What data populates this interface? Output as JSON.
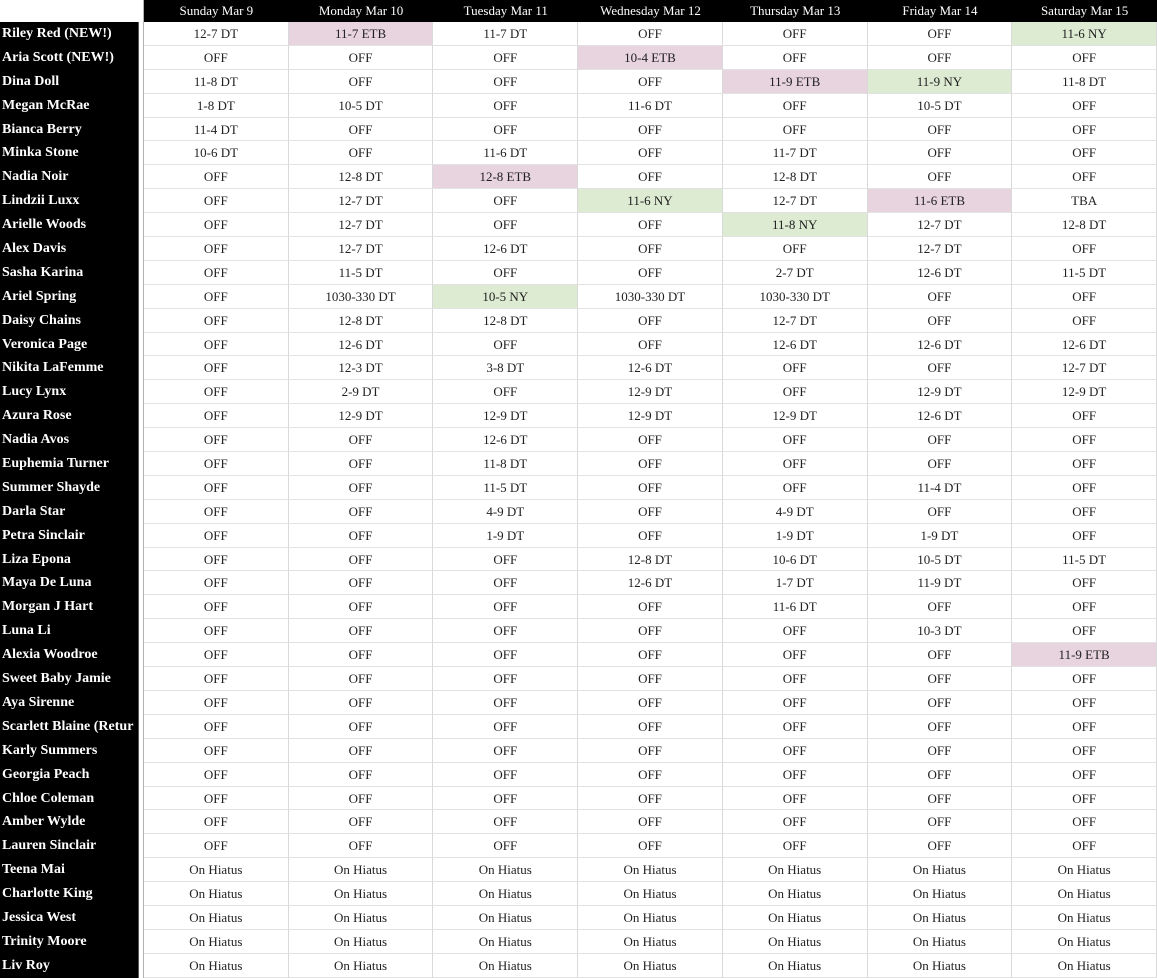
{
  "table": {
    "corner_label": "",
    "columns": [
      "Sunday Mar 9",
      "Monday Mar 10",
      "Tuesday Mar 11",
      "Wednesday Mar 12",
      "Thursday Mar 13",
      "Friday Mar 14",
      "Saturday Mar 15"
    ],
    "rows": [
      {
        "name": "Riley Red (NEW!)",
        "cells": [
          "12-7 DT",
          {
            "v": "11-7 ETB",
            "c": "pink"
          },
          "11-7 DT",
          "OFF",
          "OFF",
          "OFF",
          {
            "v": "11-6 NY",
            "c": "green"
          }
        ]
      },
      {
        "name": "Aria Scott (NEW!)",
        "cells": [
          "OFF",
          "OFF",
          "OFF",
          {
            "v": "10-4 ETB",
            "c": "pink"
          },
          "OFF",
          "OFF",
          "OFF"
        ]
      },
      {
        "name": "Dina Doll",
        "cells": [
          "11-8 DT",
          "OFF",
          "OFF",
          "OFF",
          {
            "v": "11-9 ETB",
            "c": "pink"
          },
          {
            "v": "11-9 NY",
            "c": "green"
          },
          "11-8 DT"
        ]
      },
      {
        "name": "Megan McRae",
        "cells": [
          "1-8 DT",
          "10-5 DT",
          "OFF",
          "11-6 DT",
          "OFF",
          "10-5 DT",
          "OFF"
        ]
      },
      {
        "name": "Bianca Berry",
        "cells": [
          "11-4 DT",
          "OFF",
          "OFF",
          "OFF",
          "OFF",
          "OFF",
          "OFF"
        ]
      },
      {
        "name": "Minka Stone",
        "cells": [
          "10-6 DT",
          "OFF",
          "11-6 DT",
          "OFF",
          "11-7 DT",
          "OFF",
          "OFF"
        ]
      },
      {
        "name": "Nadia Noir",
        "cells": [
          "OFF",
          "12-8 DT",
          {
            "v": "12-8 ETB",
            "c": "pink"
          },
          "OFF",
          "12-8 DT",
          "OFF",
          "OFF"
        ]
      },
      {
        "name": "Lindzii Luxx",
        "cells": [
          "OFF",
          "12-7 DT",
          "OFF",
          {
            "v": "11-6 NY",
            "c": "green"
          },
          "12-7 DT",
          {
            "v": "11-6 ETB",
            "c": "pink"
          },
          "TBA"
        ]
      },
      {
        "name": "Arielle Woods",
        "cells": [
          "OFF",
          "12-7 DT",
          "OFF",
          "OFF",
          {
            "v": "11-8 NY",
            "c": "green"
          },
          "12-7 DT",
          "12-8 DT"
        ]
      },
      {
        "name": "Alex Davis",
        "cells": [
          "OFF",
          "12-7 DT",
          "12-6 DT",
          "OFF",
          "OFF",
          "12-7 DT",
          "OFF"
        ]
      },
      {
        "name": "Sasha Karina",
        "cells": [
          "OFF",
          "11-5 DT",
          "OFF",
          "OFF",
          "2-7 DT",
          "12-6 DT",
          "11-5 DT"
        ]
      },
      {
        "name": "Ariel Spring",
        "cells": [
          "OFF",
          "1030-330 DT",
          {
            "v": "10-5 NY",
            "c": "green"
          },
          "1030-330 DT",
          "1030-330 DT",
          "OFF",
          "OFF"
        ]
      },
      {
        "name": "Daisy Chains",
        "cells": [
          "OFF",
          "12-8 DT",
          "12-8 DT",
          "OFF",
          "12-7 DT",
          "OFF",
          "OFF"
        ]
      },
      {
        "name": "Veronica Page",
        "cells": [
          "OFF",
          "12-6 DT",
          "OFF",
          "OFF",
          "12-6 DT",
          "12-6 DT",
          "12-6 DT"
        ]
      },
      {
        "name": "Nikita LaFemme",
        "cells": [
          "OFF",
          "12-3 DT",
          "3-8 DT",
          "12-6 DT",
          "OFF",
          "OFF",
          "12-7 DT"
        ]
      },
      {
        "name": "Lucy Lynx",
        "cells": [
          "OFF",
          "2-9 DT",
          "OFF",
          "12-9 DT",
          "OFF",
          "12-9 DT",
          "12-9 DT"
        ]
      },
      {
        "name": "Azura Rose",
        "cells": [
          "OFF",
          "12-9 DT",
          "12-9 DT",
          "12-9 DT",
          "12-9 DT",
          "12-6 DT",
          "OFF"
        ]
      },
      {
        "name": "Nadia Avos",
        "cells": [
          "OFF",
          "OFF",
          "12-6 DT",
          "OFF",
          "OFF",
          "OFF",
          "OFF"
        ]
      },
      {
        "name": "Euphemia Turner",
        "cells": [
          "OFF",
          "OFF",
          "11-8 DT",
          "OFF",
          "OFF",
          "OFF",
          "OFF"
        ]
      },
      {
        "name": "Summer Shayde",
        "cells": [
          "OFF",
          "OFF",
          "11-5 DT",
          "OFF",
          "OFF",
          "11-4 DT",
          "OFF"
        ]
      },
      {
        "name": "Darla Star",
        "cells": [
          "OFF",
          "OFF",
          "4-9 DT",
          "OFF",
          "4-9 DT",
          "OFF",
          "OFF"
        ]
      },
      {
        "name": "Petra Sinclair",
        "cells": [
          "OFF",
          "OFF",
          "1-9 DT",
          "OFF",
          "1-9 DT",
          "1-9 DT",
          "OFF"
        ]
      },
      {
        "name": "Liza Epona",
        "cells": [
          "OFF",
          "OFF",
          "OFF",
          "12-8 DT",
          "10-6 DT",
          "10-5 DT",
          "11-5 DT"
        ]
      },
      {
        "name": "Maya De Luna",
        "cells": [
          "OFF",
          "OFF",
          "OFF",
          "12-6 DT",
          "1-7 DT",
          "11-9 DT",
          "OFF"
        ]
      },
      {
        "name": "Morgan J Hart",
        "cells": [
          "OFF",
          "OFF",
          "OFF",
          "OFF",
          "11-6 DT",
          "OFF",
          "OFF"
        ]
      },
      {
        "name": "Luna Li",
        "cells": [
          "OFF",
          "OFF",
          "OFF",
          "OFF",
          "OFF",
          "10-3 DT",
          "OFF"
        ]
      },
      {
        "name": "Alexia Woodroe",
        "cells": [
          "OFF",
          "OFF",
          "OFF",
          "OFF",
          "OFF",
          "OFF",
          {
            "v": "11-9 ETB",
            "c": "pink"
          }
        ]
      },
      {
        "name": "Sweet Baby Jamie",
        "cells": [
          "OFF",
          "OFF",
          "OFF",
          "OFF",
          "OFF",
          "OFF",
          "OFF"
        ]
      },
      {
        "name": "Aya Sirenne",
        "cells": [
          "OFF",
          "OFF",
          "OFF",
          "OFF",
          "OFF",
          "OFF",
          "OFF"
        ]
      },
      {
        "name": "Scarlett Blaine (Retur",
        "cells": [
          "OFF",
          "OFF",
          "OFF",
          "OFF",
          "OFF",
          "OFF",
          "OFF"
        ]
      },
      {
        "name": "Karly Summers",
        "cells": [
          "OFF",
          "OFF",
          "OFF",
          "OFF",
          "OFF",
          "OFF",
          "OFF"
        ]
      },
      {
        "name": "Georgia Peach",
        "cells": [
          "OFF",
          "OFF",
          "OFF",
          "OFF",
          "OFF",
          "OFF",
          "OFF"
        ]
      },
      {
        "name": "Chloe Coleman",
        "cells": [
          "OFF",
          "OFF",
          "OFF",
          "OFF",
          "OFF",
          "OFF",
          "OFF"
        ]
      },
      {
        "name": "Amber Wylde",
        "cells": [
          "OFF",
          "OFF",
          "OFF",
          "OFF",
          "OFF",
          "OFF",
          "OFF"
        ]
      },
      {
        "name": "Lauren Sinclair",
        "cells": [
          "OFF",
          "OFF",
          "OFF",
          "OFF",
          "OFF",
          "OFF",
          "OFF"
        ]
      },
      {
        "name": "Teena Mai",
        "cells": [
          "On Hiatus",
          "On Hiatus",
          "On Hiatus",
          "On Hiatus",
          "On Hiatus",
          "On Hiatus",
          "On Hiatus"
        ]
      },
      {
        "name": "Charlotte King",
        "cells": [
          "On Hiatus",
          "On Hiatus",
          "On Hiatus",
          "On Hiatus",
          "On Hiatus",
          "On Hiatus",
          "On Hiatus"
        ]
      },
      {
        "name": "Jessica West",
        "cells": [
          "On Hiatus",
          "On Hiatus",
          "On Hiatus",
          "On Hiatus",
          "On Hiatus",
          "On Hiatus",
          "On Hiatus"
        ]
      },
      {
        "name": "Trinity Moore",
        "cells": [
          "On Hiatus",
          "On Hiatus",
          "On Hiatus",
          "On Hiatus",
          "On Hiatus",
          "On Hiatus",
          "On Hiatus"
        ]
      },
      {
        "name": "Liv Roy",
        "cells": [
          "On Hiatus",
          "On Hiatus",
          "On Hiatus",
          "On Hiatus",
          "On Hiatus",
          "On Hiatus",
          "On Hiatus"
        ]
      }
    ]
  },
  "colors": {
    "header_bg": "#000000",
    "name_column_bg": "#000000",
    "highlight_pink": "#e8d4de",
    "highlight_green": "#ddebd2"
  },
  "legend_meaning": {
    "pink_code": "ETB",
    "green_code": "NY",
    "plain_code": "DT"
  }
}
